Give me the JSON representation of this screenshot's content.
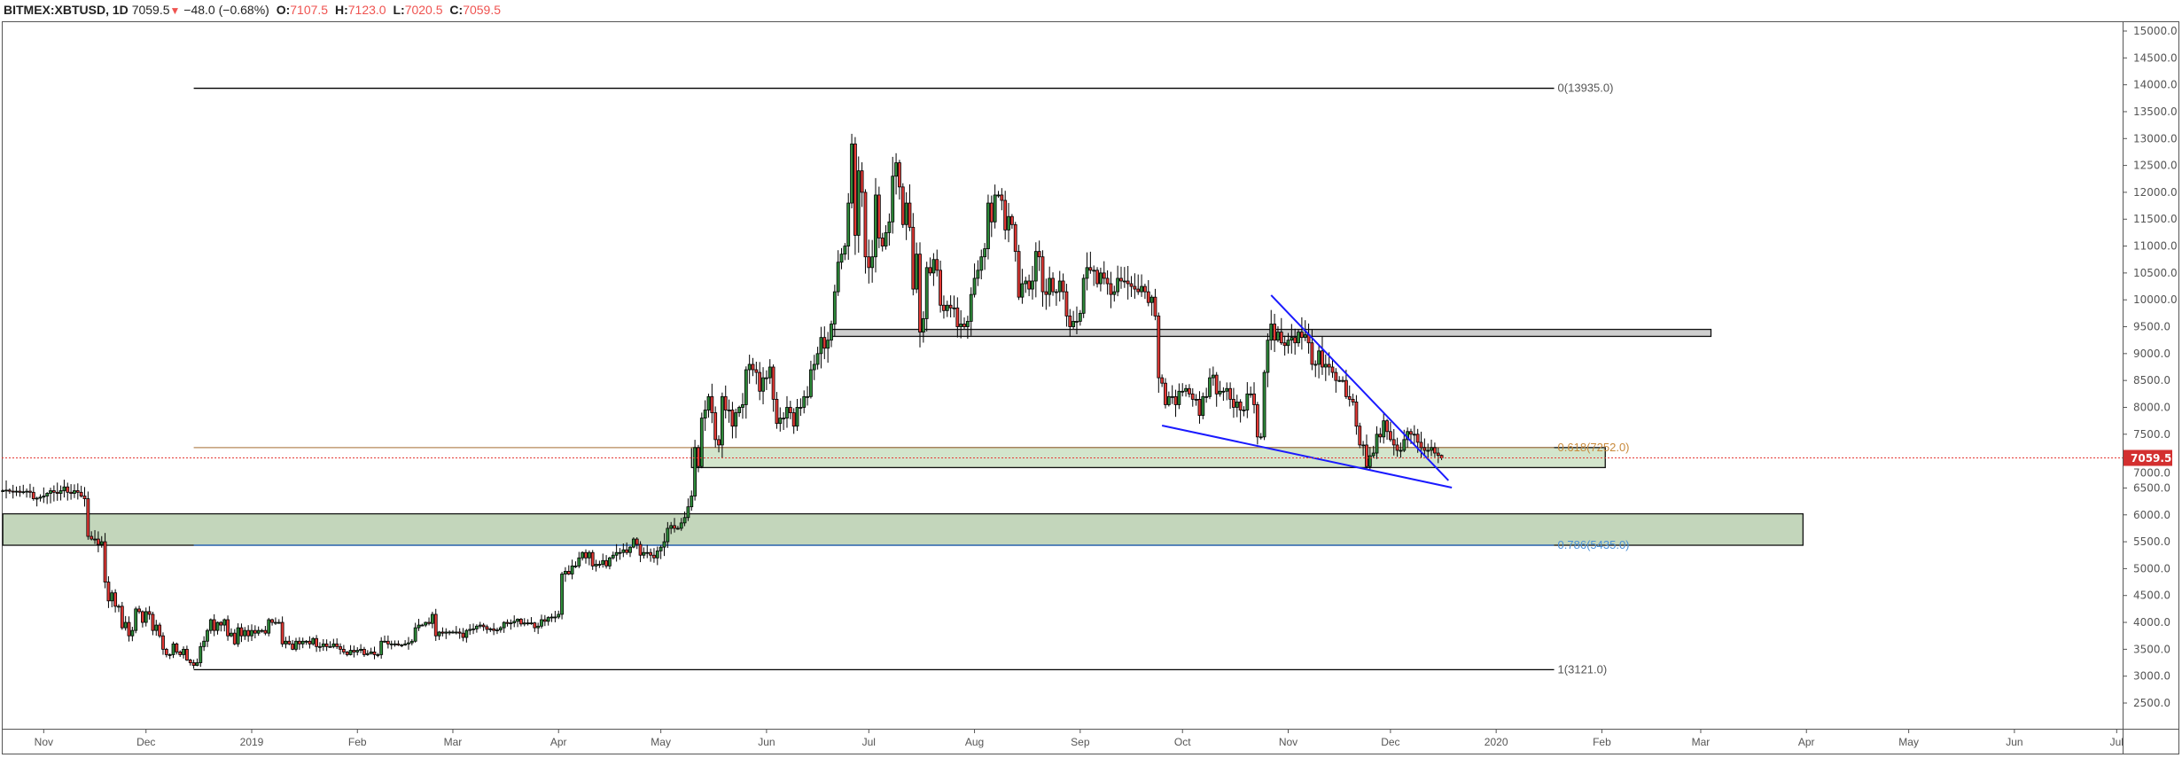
{
  "header": {
    "symbol": "BITMEX:XBTUSD, 1D",
    "last": "7059.5",
    "direction_icon": "triangle-down",
    "change": "−48.0 (−0.68%)",
    "open_label": "O:",
    "open": "7107.5",
    "high_label": "H:",
    "high": "7123.0",
    "low_label": "L:",
    "low": "7020.5",
    "close_label": "C:",
    "close": "7059.5"
  },
  "colors": {
    "up": "#2e8b3a",
    "down": "#e53935",
    "price_tag": "#d32f2f",
    "zone_green": "#c3d6bb",
    "zone_gray": "#cfcfcf",
    "trendline": "#1a1aff"
  },
  "chart_data": {
    "type": "candlestick",
    "start_date": "2018-10-20",
    "interval": "1D",
    "ylim": [
      2000,
      15300
    ],
    "y_ticks": [
      2500,
      3000,
      3500,
      4000,
      4500,
      5000,
      5500,
      6000,
      6500,
      7000,
      7500,
      8000,
      8500,
      9000,
      9500,
      10000,
      10500,
      11000,
      11500,
      12000,
      12500,
      13000,
      13500,
      14000,
      14500,
      15000
    ],
    "x_ticks": [
      {
        "date": "2018-11-01",
        "label": "Nov"
      },
      {
        "date": "2018-12-01",
        "label": "Dec"
      },
      {
        "date": "2019-01-01",
        "label": "2019"
      },
      {
        "date": "2019-02-01",
        "label": "Feb"
      },
      {
        "date": "2019-03-01",
        "label": "Mar"
      },
      {
        "date": "2019-04-01",
        "label": "Apr"
      },
      {
        "date": "2019-05-01",
        "label": "May"
      },
      {
        "date": "2019-06-01",
        "label": "Jun"
      },
      {
        "date": "2019-07-01",
        "label": "Jul"
      },
      {
        "date": "2019-08-01",
        "label": "Aug"
      },
      {
        "date": "2019-09-01",
        "label": "Sep"
      },
      {
        "date": "2019-10-01",
        "label": "Oct"
      },
      {
        "date": "2019-11-01",
        "label": "Nov"
      },
      {
        "date": "2019-12-01",
        "label": "Dec"
      },
      {
        "date": "2020-01-01",
        "label": "2020"
      },
      {
        "date": "2020-02-01",
        "label": "Feb"
      },
      {
        "date": "2020-03-01",
        "label": "Mar"
      },
      {
        "date": "2020-04-01",
        "label": "Apr"
      },
      {
        "date": "2020-05-01",
        "label": "May"
      },
      {
        "date": "2020-06-01",
        "label": "Jun"
      },
      {
        "date": "2020-07-01",
        "label": "Jul"
      }
    ],
    "last_candle": {
      "open": 7107.5,
      "high": 7123.0,
      "low": 7020.5,
      "close": 7059.5
    },
    "closes": [
      6450,
      6460,
      6440,
      6430,
      6440,
      6420,
      6430,
      6440,
      6420,
      6300,
      6310,
      6330,
      6350,
      6400,
      6450,
      6420,
      6400,
      6450,
      6520,
      6420,
      6400,
      6450,
      6420,
      6350,
      6300,
      5600,
      5550,
      5550,
      5450,
      5500,
      4750,
      4400,
      4550,
      4300,
      4300,
      3900,
      4000,
      3750,
      3850,
      4250,
      4200,
      4000,
      4200,
      4150,
      3850,
      3950,
      3750,
      3500,
      3400,
      3400,
      3600,
      3450,
      3400,
      3500,
      3300,
      3250,
      3200,
      3250,
      3550,
      3650,
      3850,
      4050,
      3850,
      4000,
      3950,
      4050,
      3750,
      3800,
      3600,
      3900,
      3750,
      3850,
      3750,
      3850,
      3800,
      3850,
      3850,
      3800,
      4050,
      4000,
      4000,
      4000,
      3600,
      3650,
      3600,
      3500,
      3650,
      3600,
      3650,
      3650,
      3600,
      3700,
      3550,
      3550,
      3600,
      3550,
      3550,
      3600,
      3550,
      3500,
      3450,
      3400,
      3480,
      3450,
      3480,
      3500,
      3400,
      3420,
      3450,
      3400,
      3400,
      3650,
      3650,
      3600,
      3600,
      3600,
      3580,
      3580,
      3600,
      3620,
      3650,
      3900,
      3950,
      3950,
      4000,
      3980,
      4150,
      3750,
      3820,
      3800,
      3820,
      3820,
      3820,
      3820,
      3800,
      3720,
      3850,
      3870,
      3880,
      3930,
      3950,
      3920,
      3870,
      3880,
      3850,
      3860,
      3900,
      4000,
      3980,
      3990,
      4020,
      4060,
      3970,
      3990,
      3990,
      3990,
      3900,
      3930,
      4050,
      4020,
      4090,
      4100,
      4100,
      4150,
      4900,
      4950,
      4900,
      5050,
      5050,
      5200,
      5300,
      5200,
      5300,
      5050,
      5080,
      5080,
      5150,
      5050,
      5200,
      5250,
      5300,
      5300,
      5350,
      5300,
      5400,
      5550,
      5450,
      5250,
      5300,
      5300,
      5250,
      5200,
      5330,
      5400,
      5500,
      5750,
      5800,
      5750,
      5750,
      5850,
      5950,
      6150,
      6350,
      7250,
      6900,
      7800,
      7950,
      8200,
      7900,
      7400,
      7300,
      8200,
      7950,
      7950,
      7650,
      7900,
      8000,
      8050,
      8700,
      8800,
      8700,
      8650,
      8300,
      8550,
      8550,
      8750,
      8150,
      7700,
      7800,
      7800,
      8000,
      7900,
      7650,
      8000,
      8000,
      8200,
      8200,
      8700,
      8800,
      9000,
      9300,
      9100,
      9250,
      9550,
      10150,
      10700,
      10850,
      11000,
      11800,
      12900,
      11200,
      12400,
      12000,
      10800,
      10600,
      10800,
      11950,
      11150,
      11000,
      11250,
      11450,
      12300,
      12550,
      12100,
      11400,
      11800,
      11350,
      10200,
      10850,
      9400,
      9650,
      10600,
      10500,
      10750,
      10550,
      9900,
      9800,
      9900,
      9850,
      9850,
      9500,
      9550,
      9500,
      9600,
      10100,
      10400,
      10550,
      10800,
      10950,
      11800,
      11450,
      11950,
      11950,
      11850,
      11300,
      11550,
      11400,
      10900,
      10050,
      10300,
      10350,
      10200,
      10350,
      10900,
      10800,
      10150,
      10100,
      10400,
      10150,
      10150,
      10350,
      10150,
      9700,
      9500,
      9600,
      9600,
      9750,
      10400,
      10600,
      10550,
      10550,
      10300,
      10500,
      10400,
      10300,
      10100,
      10150,
      10400,
      10350,
      10350,
      10300,
      10250,
      10200,
      10150,
      10250,
      10150,
      9950,
      10050,
      9700,
      8550,
      8450,
      8050,
      8200,
      8200,
      8050,
      8300,
      8300,
      8350,
      8250,
      8150,
      8150,
      7850,
      8200,
      8200,
      8550,
      8600,
      8250,
      8300,
      8300,
      8350,
      8150,
      8000,
      8100,
      7950,
      7950,
      8250,
      8250,
      8050,
      7450,
      7450,
      8650,
      9250,
      9550,
      9250,
      9400,
      9200,
      9150,
      9250,
      9300,
      9200,
      9400,
      9300,
      9350,
      9200,
      8800,
      8800,
      9050,
      8750,
      8800,
      8750,
      8650,
      8500,
      8500,
      8500,
      8200,
      8150,
      8100,
      7650,
      7300,
      7300,
      6900,
      7100,
      7150,
      7500,
      7450,
      7750,
      7550,
      7400,
      7300,
      7200,
      7200,
      7400,
      7550,
      7500,
      7500,
      7350,
      7250,
      7200,
      7200,
      7250,
      7150,
      7107.5,
      7059.5
    ],
    "current_price": {
      "value": 7059.5,
      "label": "7059.5"
    },
    "fib_levels": [
      {
        "ratio": "0",
        "price": 13935.0,
        "label": "0(13935.0)",
        "color": "#000000",
        "text_color": "#555555"
      },
      {
        "ratio": "0.618",
        "price": 7252.0,
        "label": "0.618(7252.0)",
        "color": "#b5895a",
        "text_color": "#c8893a"
      },
      {
        "ratio": "0.786",
        "price": 5435.0,
        "label": "0.786(5435.0)",
        "color": "#2a6fc9",
        "text_color": "#4a8fd6"
      },
      {
        "ratio": "1",
        "price": 3121.0,
        "label": "1(3121.0)",
        "color": "#000000",
        "text_color": "#555555"
      }
    ],
    "fib_range": {
      "from": "2018-12-15",
      "to": "2020-01-18"
    },
    "zones": [
      {
        "name": "gray-resistance-zone",
        "from": "2019-06-20",
        "to": "2020-03-04",
        "low": 9320,
        "high": 9450,
        "fill": "#cfcfcf"
      },
      {
        "name": "green-support-zone",
        "from": "2019-05-10",
        "to": "2020-02-02",
        "low": 6880,
        "high": 7252,
        "fill": "#d3e5cc"
      },
      {
        "name": "big-green-zone",
        "from": "2018-10-20",
        "to": "2020-03-31",
        "low": 5435,
        "high": 6020,
        "fill": "#c3d6bb"
      }
    ],
    "trendlines": [
      {
        "name": "upper-trendline",
        "from": {
          "date": "2019-10-27",
          "price": 10086
        },
        "to": {
          "date": "2019-12-18",
          "price": 6640
        }
      },
      {
        "name": "lower-trendline",
        "from": {
          "date": "2019-09-25",
          "price": 7662
        },
        "to": {
          "date": "2019-12-19",
          "price": 6507
        }
      }
    ]
  }
}
